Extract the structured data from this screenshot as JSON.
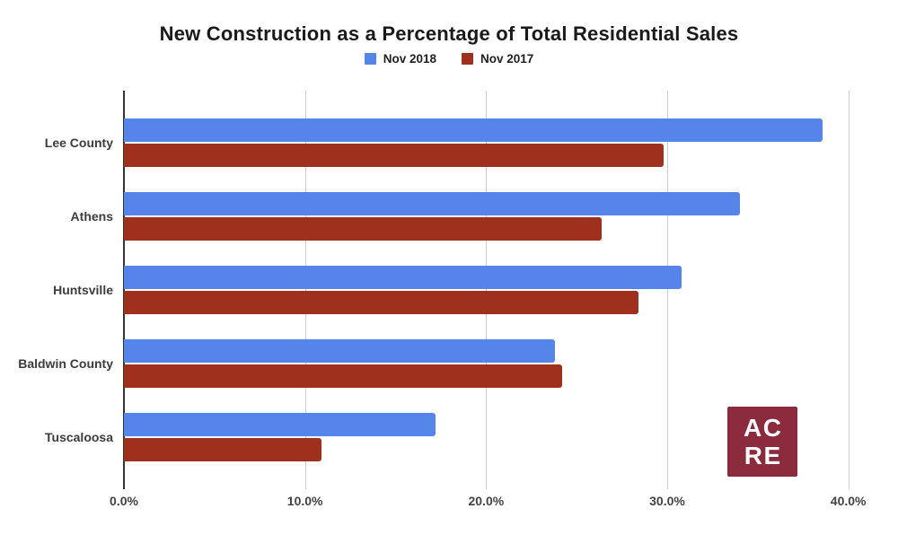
{
  "chart_data": {
    "type": "bar",
    "orientation": "horizontal",
    "title": "New Construction as a Percentage of Total Residential Sales",
    "categories": [
      "Lee County",
      "Athens",
      "Huntsville",
      "Baldwin County",
      "Tuscaloosa"
    ],
    "series": [
      {
        "name": "Nov 2018",
        "color": "#5585E8",
        "values": [
          38.6,
          34.0,
          30.8,
          23.8,
          17.2
        ]
      },
      {
        "name": "Nov 2017",
        "color": "#A0301E",
        "values": [
          29.8,
          26.4,
          28.4,
          24.2,
          10.9
        ]
      }
    ],
    "x_tick_labels": [
      "0.0%",
      "10.0%",
      "20.0%",
      "30.0%",
      "40.0%"
    ],
    "x_tick_values": [
      0,
      10,
      20,
      30,
      40
    ],
    "xlim": [
      0,
      42
    ],
    "ylabel": "",
    "xlabel": "",
    "grid": true,
    "legend_position": "top"
  },
  "logo": {
    "line1": "AC",
    "line2": "RE",
    "bg_color": "#8D2B3E",
    "text_color": "#FFFFFF"
  },
  "colors": {
    "background": "#FFFFFF",
    "gridline": "#CCCCCC",
    "axis_line": "#333333",
    "title_text": "#1A1A1A",
    "label_text": "#3C3C3C"
  }
}
